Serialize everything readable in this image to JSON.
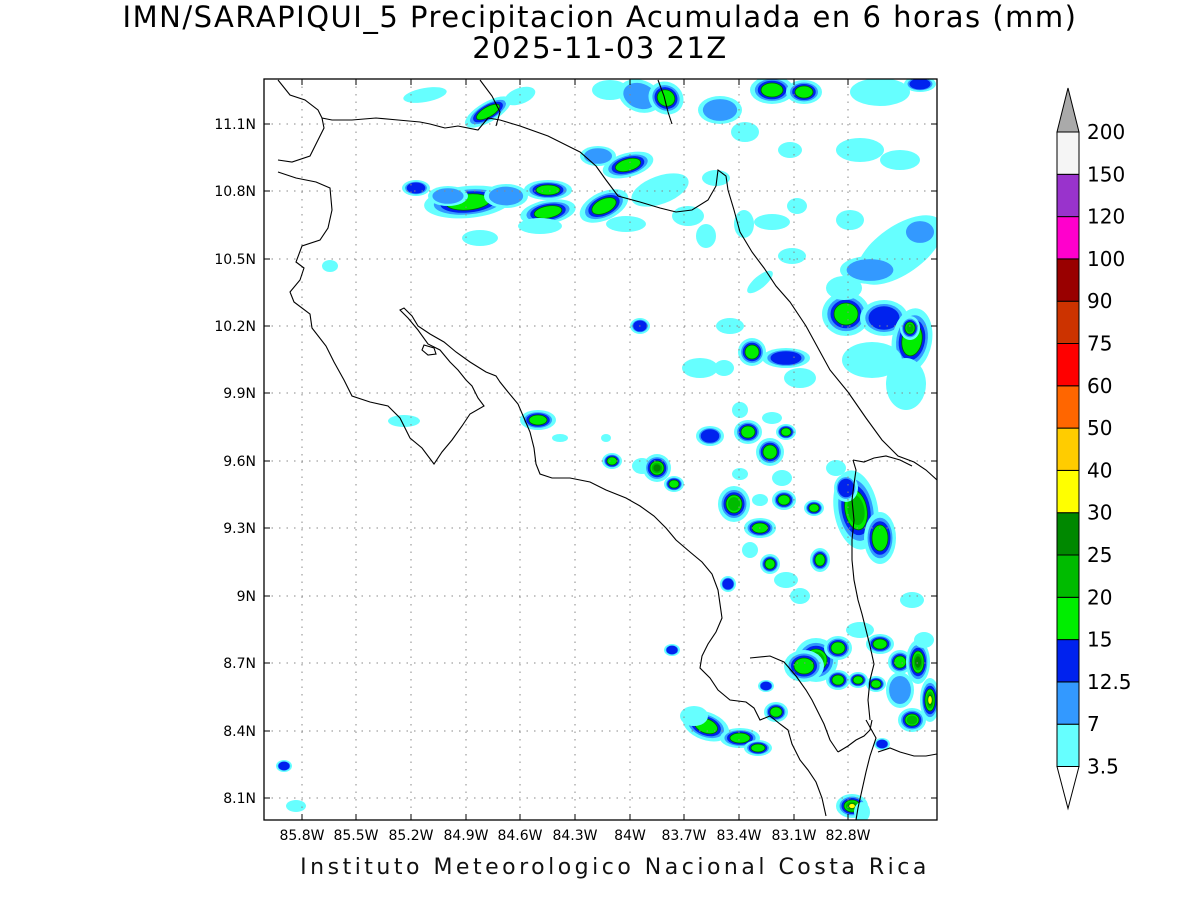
{
  "map": {
    "title_line1": "IMN/SARAPIQUI_5 Precipitacion Acumulada en 6 horas (mm)",
    "title_line2": "2025-11-03 21Z",
    "footer": "Instituto Meteorologico Nacional Costa Rica",
    "lat_ticks": [
      "11.1N",
      "10.8N",
      "10.5N",
      "10.2N",
      "9.9N",
      "9.6N",
      "9.3N",
      "9N",
      "8.7N",
      "8.4N",
      "8.1N"
    ],
    "lon_ticks": [
      "85.8W",
      "85.5W",
      "85.2W",
      "84.9W",
      "84.6W",
      "84.3W",
      "84W",
      "83.7W",
      "83.4W",
      "83.1W",
      "82.8W"
    ],
    "gridlines": "dotted",
    "colorbar": {
      "labels": [
        "3.5",
        "7",
        "12.5",
        "15",
        "20",
        "25",
        "30",
        "40",
        "50",
        "60",
        "75",
        "90",
        "100",
        "120",
        "150",
        "200"
      ],
      "colors": [
        "#66ffff",
        "#3399ff",
        "#0022ee",
        "#00ee00",
        "#00bb00",
        "#008800",
        "#ffff00",
        "#ffcc00",
        "#ff6600",
        "#ff0000",
        "#cc3300",
        "#990000",
        "#ff00cc",
        "#9933cc",
        "#f5f5f5"
      ],
      "upper_arrow_color": "#aaaaaa",
      "lower_arrow_color": "#ffffff"
    }
  }
}
